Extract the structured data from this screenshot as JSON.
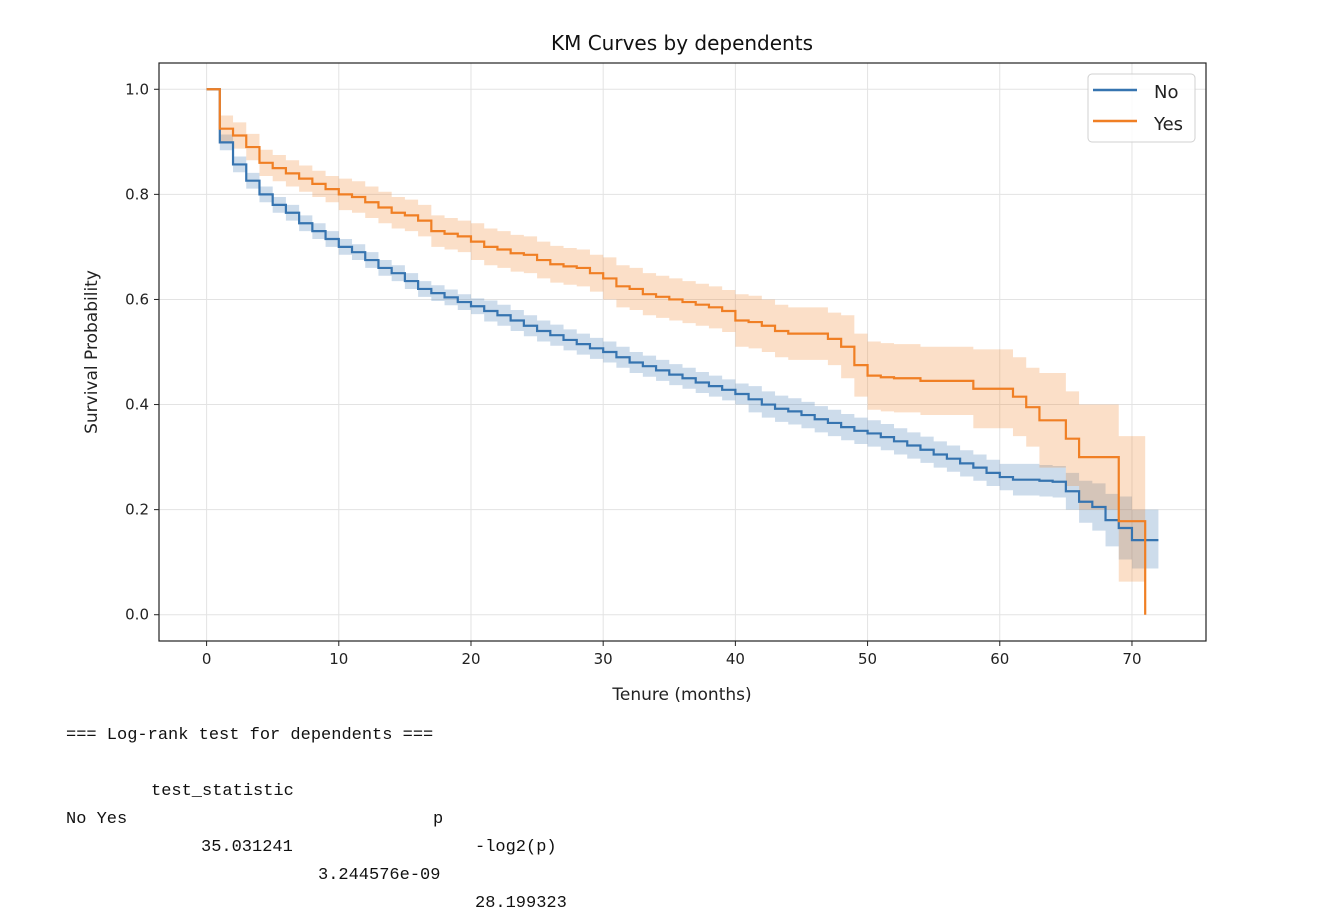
{
  "chart_data": {
    "type": "line",
    "title": "KM Curves by dependents",
    "xlabel": "Tenure (months)",
    "ylabel": "Survival Probability",
    "xlim": [
      -3.6,
      75.6
    ],
    "ylim": [
      -0.05,
      1.05
    ],
    "xticks": [
      0,
      10,
      20,
      30,
      40,
      50,
      60,
      70
    ],
    "yticks": [
      "0.0",
      "0.2",
      "0.4",
      "0.6",
      "0.8",
      "1.0"
    ],
    "grid": true,
    "legend_position": "top-right",
    "step": "post",
    "series": [
      {
        "name": "No",
        "color": "#3674b0",
        "x": [
          0,
          1,
          2,
          3,
          4,
          5,
          6,
          7,
          8,
          9,
          10,
          11,
          12,
          13,
          14,
          15,
          16,
          17,
          18,
          19,
          20,
          21,
          22,
          23,
          24,
          25,
          26,
          27,
          28,
          29,
          30,
          31,
          32,
          33,
          34,
          35,
          36,
          37,
          38,
          39,
          40,
          41,
          42,
          43,
          44,
          45,
          46,
          47,
          48,
          49,
          50,
          51,
          52,
          53,
          54,
          55,
          56,
          57,
          58,
          59,
          60,
          61,
          62,
          63,
          64,
          65,
          66,
          67,
          68,
          69,
          70,
          71,
          72
        ],
        "survival": [
          1.0,
          0.899,
          0.857,
          0.826,
          0.8,
          0.78,
          0.765,
          0.745,
          0.73,
          0.715,
          0.7,
          0.69,
          0.675,
          0.66,
          0.65,
          0.635,
          0.62,
          0.612,
          0.604,
          0.595,
          0.587,
          0.578,
          0.57,
          0.56,
          0.55,
          0.54,
          0.532,
          0.523,
          0.515,
          0.507,
          0.5,
          0.49,
          0.48,
          0.473,
          0.465,
          0.457,
          0.45,
          0.442,
          0.435,
          0.428,
          0.42,
          0.41,
          0.4,
          0.392,
          0.387,
          0.38,
          0.372,
          0.365,
          0.357,
          0.35,
          0.345,
          0.338,
          0.33,
          0.322,
          0.314,
          0.305,
          0.297,
          0.288,
          0.28,
          0.27,
          0.262,
          0.257,
          0.257,
          0.255,
          0.253,
          0.235,
          0.215,
          0.205,
          0.18,
          0.165,
          0.142,
          0.142,
          0.142
        ],
        "ci_lower": [
          1.0,
          0.884,
          0.842,
          0.811,
          0.785,
          0.765,
          0.75,
          0.73,
          0.715,
          0.7,
          0.685,
          0.675,
          0.66,
          0.645,
          0.635,
          0.62,
          0.605,
          0.597,
          0.589,
          0.58,
          0.572,
          0.558,
          0.55,
          0.54,
          0.53,
          0.52,
          0.512,
          0.503,
          0.495,
          0.487,
          0.48,
          0.47,
          0.46,
          0.453,
          0.445,
          0.437,
          0.43,
          0.422,
          0.415,
          0.408,
          0.4,
          0.385,
          0.375,
          0.367,
          0.362,
          0.355,
          0.347,
          0.34,
          0.332,
          0.325,
          0.32,
          0.313,
          0.305,
          0.297,
          0.289,
          0.28,
          0.272,
          0.263,
          0.255,
          0.245,
          0.237,
          0.227,
          0.227,
          0.225,
          0.223,
          0.2,
          0.175,
          0.16,
          0.13,
          0.105,
          0.088,
          0.088,
          0.088
        ],
        "ci_upper": [
          1.0,
          0.914,
          0.872,
          0.841,
          0.815,
          0.795,
          0.78,
          0.76,
          0.745,
          0.73,
          0.715,
          0.705,
          0.69,
          0.675,
          0.665,
          0.65,
          0.635,
          0.627,
          0.619,
          0.61,
          0.602,
          0.598,
          0.59,
          0.58,
          0.57,
          0.56,
          0.552,
          0.543,
          0.535,
          0.527,
          0.52,
          0.51,
          0.5,
          0.493,
          0.485,
          0.477,
          0.47,
          0.462,
          0.455,
          0.448,
          0.44,
          0.435,
          0.425,
          0.417,
          0.412,
          0.405,
          0.397,
          0.39,
          0.382,
          0.375,
          0.37,
          0.363,
          0.355,
          0.347,
          0.339,
          0.33,
          0.322,
          0.313,
          0.305,
          0.295,
          0.287,
          0.287,
          0.287,
          0.285,
          0.283,
          0.27,
          0.255,
          0.25,
          0.23,
          0.225,
          0.2,
          0.2,
          0.2
        ]
      },
      {
        "name": "Yes",
        "color": "#f07f24",
        "x": [
          0,
          1,
          2,
          3,
          4,
          5,
          6,
          7,
          8,
          9,
          10,
          11,
          12,
          13,
          14,
          15,
          16,
          17,
          18,
          19,
          20,
          21,
          22,
          23,
          24,
          25,
          26,
          27,
          28,
          29,
          30,
          31,
          32,
          33,
          34,
          35,
          36,
          37,
          38,
          39,
          40,
          41,
          42,
          43,
          44,
          45,
          46,
          47,
          48,
          49,
          50,
          51,
          52,
          53,
          54,
          55,
          56,
          57,
          58,
          59,
          60,
          61,
          62,
          63,
          64,
          65,
          66,
          67,
          68,
          69,
          70,
          71
        ],
        "survival": [
          1.0,
          0.925,
          0.912,
          0.89,
          0.86,
          0.85,
          0.84,
          0.83,
          0.82,
          0.81,
          0.8,
          0.795,
          0.785,
          0.775,
          0.765,
          0.76,
          0.75,
          0.73,
          0.725,
          0.72,
          0.71,
          0.7,
          0.695,
          0.688,
          0.685,
          0.675,
          0.667,
          0.663,
          0.66,
          0.65,
          0.64,
          0.625,
          0.62,
          0.61,
          0.605,
          0.6,
          0.595,
          0.59,
          0.585,
          0.578,
          0.56,
          0.557,
          0.55,
          0.54,
          0.535,
          0.535,
          0.535,
          0.525,
          0.51,
          0.475,
          0.455,
          0.452,
          0.45,
          0.45,
          0.445,
          0.445,
          0.445,
          0.445,
          0.43,
          0.43,
          0.43,
          0.415,
          0.395,
          0.37,
          0.37,
          0.335,
          0.3,
          0.3,
          0.3,
          0.178,
          0.178,
          0.0
        ],
        "ci_lower": [
          1.0,
          0.9,
          0.887,
          0.865,
          0.835,
          0.825,
          0.815,
          0.805,
          0.795,
          0.785,
          0.77,
          0.765,
          0.755,
          0.745,
          0.735,
          0.73,
          0.72,
          0.7,
          0.695,
          0.69,
          0.675,
          0.665,
          0.66,
          0.653,
          0.65,
          0.64,
          0.632,
          0.628,
          0.625,
          0.615,
          0.6,
          0.585,
          0.58,
          0.57,
          0.565,
          0.56,
          0.555,
          0.55,
          0.545,
          0.538,
          0.51,
          0.507,
          0.5,
          0.49,
          0.485,
          0.485,
          0.485,
          0.475,
          0.45,
          0.415,
          0.39,
          0.387,
          0.385,
          0.385,
          0.38,
          0.38,
          0.38,
          0.38,
          0.355,
          0.355,
          0.355,
          0.34,
          0.32,
          0.28,
          0.28,
          0.245,
          0.2,
          0.2,
          0.2,
          0.063,
          0.063,
          0.0
        ],
        "ci_upper": [
          1.0,
          0.95,
          0.937,
          0.915,
          0.885,
          0.875,
          0.865,
          0.855,
          0.845,
          0.835,
          0.83,
          0.825,
          0.815,
          0.805,
          0.795,
          0.79,
          0.78,
          0.76,
          0.755,
          0.75,
          0.745,
          0.735,
          0.73,
          0.723,
          0.72,
          0.71,
          0.702,
          0.698,
          0.695,
          0.685,
          0.68,
          0.665,
          0.66,
          0.65,
          0.645,
          0.64,
          0.635,
          0.63,
          0.625,
          0.618,
          0.61,
          0.607,
          0.6,
          0.59,
          0.585,
          0.585,
          0.585,
          0.575,
          0.57,
          0.535,
          0.52,
          0.517,
          0.515,
          0.515,
          0.51,
          0.51,
          0.51,
          0.51,
          0.505,
          0.505,
          0.505,
          0.49,
          0.47,
          0.46,
          0.46,
          0.425,
          0.4,
          0.4,
          0.4,
          0.34,
          0.34,
          0.0
        ]
      }
    ]
  },
  "logrank_output": {
    "heading": "=== Log-rank test for dependents ===",
    "columns": [
      "test_statistic",
      "p",
      "-log2(p)"
    ],
    "row_label": "No Yes",
    "values": [
      "35.031241",
      "3.244576e-09",
      "28.199323"
    ]
  }
}
